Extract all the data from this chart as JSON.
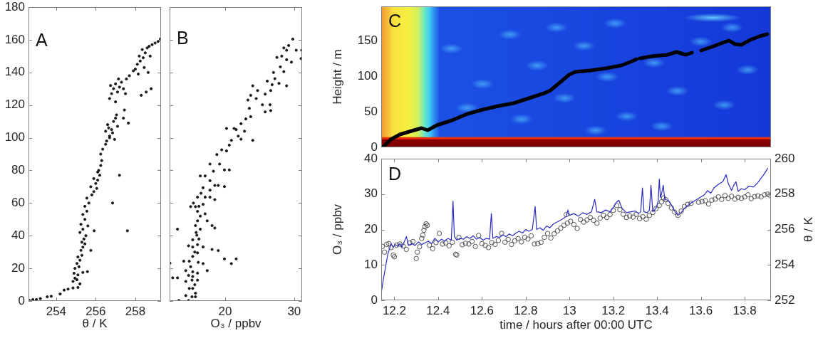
{
  "chart_data": [
    {
      "type": "scatter",
      "xlabel": "θ / K",
      "annotations": [
        "A"
      ],
      "marker": "circle",
      "color": "#1a1a1a",
      "xlim": [
        252.6,
        259.3
      ],
      "xticks": [
        254,
        256,
        258
      ],
      "ylim": [
        0,
        180
      ],
      "yticks": [
        0,
        20,
        40,
        60,
        80,
        100,
        120,
        140,
        160,
        180
      ],
      "x": [
        252.64,
        252.82,
        253.0,
        253.2,
        253.55,
        253.75,
        254.2,
        254.4,
        254.6,
        254.85,
        255.1,
        254.85,
        254.95,
        255.05,
        254.9,
        255.1,
        254.95,
        255.15,
        255.05,
        255.2,
        255.1,
        255.3,
        255.25,
        255.35,
        255.3,
        255.45,
        255.4,
        255.5,
        255.35,
        255.58,
        255.75,
        255.2,
        255.2,
        255.35,
        255.25,
        255.45,
        255.35,
        255.55,
        255.45,
        255.65,
        255.55,
        255.8,
        255.9,
        255.75,
        255.6,
        255.92,
        256.0,
        256.1,
        255.9,
        256.2,
        256.15,
        256.25,
        256.1,
        256.3,
        256.25,
        256.35,
        256.5,
        256.55,
        256.7,
        256.05,
        256.85,
        257.2,
        257.6,
        256.5,
        256.65,
        256.8,
        256.6,
        256.9,
        256.85,
        257.0,
        257.05,
        256.7,
        257.1,
        257.4,
        257.45,
        257.65,
        256.95,
        256.7,
        256.8,
        256.9,
        256.75,
        257.0,
        257.1,
        257.2,
        257.3,
        257.4,
        257.0,
        257.15,
        257.55,
        257.7,
        257.9,
        257.5,
        258.0,
        258.1,
        258.25,
        258.2,
        258.4,
        258.5,
        258.35,
        258.6,
        258.7,
        258.85,
        259.0,
        259.15,
        259.27,
        258.45,
        258.75,
        258.65,
        258.15,
        258.3,
        258.55,
        258.8
      ],
      "values": [
        0.4,
        0.9,
        0.9,
        1.5,
        2.6,
        2.9,
        4.3,
        6.7,
        7.3,
        8,
        8.3,
        12,
        14,
        13,
        17,
        16,
        20,
        21,
        23,
        25,
        27,
        28,
        31,
        33,
        36,
        35,
        38,
        40,
        17.5,
        18,
        31,
        10.5,
        42,
        44,
        47,
        50,
        53,
        55,
        58,
        60,
        63,
        65,
        67,
        70,
        46,
        43,
        72,
        74,
        75,
        77,
        80,
        83,
        79,
        86,
        90,
        93,
        96,
        98,
        100,
        69,
        60,
        77,
        43,
        104,
        106,
        105,
        108,
        110,
        103,
        112,
        114,
        101,
        107,
        112,
        117,
        109,
        99,
        124,
        127,
        130,
        132,
        133,
        128,
        131,
        134,
        130,
        122,
        136,
        136,
        138,
        141,
        127,
        142,
        145,
        147,
        150,
        149,
        152,
        154,
        155,
        156,
        157,
        158,
        159,
        160.5,
        143,
        150,
        140,
        139,
        126,
        128,
        130
      ]
    },
    {
      "type": "scatter",
      "xlabel": "O₃ / ppbv",
      "annotations": [
        "B"
      ],
      "tick_labels": "x",
      "marker": "circle",
      "color": "#1a1a1a",
      "xlim": [
        11.95,
        31.15
      ],
      "xticks": [
        20,
        30
      ],
      "ylim": [
        0,
        180
      ],
      "yticks": [
        0,
        20,
        40,
        60,
        80,
        100,
        120,
        140,
        160,
        180
      ],
      "x": [
        29.8,
        29.2,
        28.9,
        30.3,
        31.1,
        28.2,
        28.9,
        29.6,
        31.0,
        27.5,
        28.0,
        28.5,
        27.2,
        27.8,
        28.9,
        26.1,
        26.8,
        24.0,
        24.7,
        23.7,
        23.3,
        25.8,
        26.6,
        26.5,
        26.6,
        25.8,
        25.4,
        23.0,
        23.7,
        22.3,
        21.3,
        21.6,
        20.2,
        20.9,
        20.6,
        22.3,
        24.0,
        19.5,
        18.8,
        20.2,
        17.8,
        18.3,
        19.2,
        19.9,
        20.6,
        16.4,
        17.1,
        17.8,
        18.5,
        16.8,
        17.8,
        19.0,
        19.9,
        16.0,
        17.1,
        17.8,
        18.5,
        15.7,
        16.8,
        15.0,
        16.0,
        16.4,
        17.1,
        16.0,
        15.7,
        18.1,
        17.4,
        13.1,
        16.4,
        15.9,
        18.5,
        15.3,
        16.0,
        15.3,
        16.8,
        14.7,
        18.1,
        19.0,
        19.9,
        20.9,
        21.6,
        16.0,
        15.3,
        14.0,
        14.8,
        16.1,
        16.8,
        12.0,
        14.3,
        15.3,
        16.0,
        17.4,
        14.7,
        15.3,
        12.4,
        13.1,
        14.3,
        15.2,
        14.8,
        15.3,
        15.7,
        14.3,
        15.2,
        15.7,
        14.7,
        13.3,
        16.0,
        16.2,
        15.4,
        16.5,
        15.8,
        16.2,
        15.6,
        15.0,
        15.6,
        27.0,
        28.5,
        23.5,
        24.5,
        22.8,
        21.9
      ],
      "values": [
        160.4,
        156.5,
        153.6,
        153.6,
        153.6,
        150,
        147.8,
        146.3,
        148.5,
        149.2,
        143.4,
        140.5,
        136.2,
        133.3,
        131.8,
        134.7,
        132.5,
        131.8,
        128.9,
        126,
        123.1,
        126.7,
        128.9,
        120.2,
        116.6,
        115.8,
        120.2,
        111.5,
        112.9,
        108.6,
        105.7,
        105,
        105.7,
        98.4,
        95.5,
        99.1,
        98.4,
        92.6,
        89.7,
        91.9,
        83.9,
        79.5,
        83.9,
        80.3,
        80.3,
        76.6,
        76.6,
        73.7,
        70.8,
        69.4,
        67.9,
        70.8,
        70.1,
        63.6,
        63.6,
        63.6,
        62.1,
        57.8,
        59.2,
        57.8,
        54.9,
        52,
        53.4,
        49.1,
        46.2,
        46.2,
        49.1,
        44,
        44,
        40.3,
        44.7,
        37.5,
        34.5,
        33.1,
        33.1,
        33.8,
        31.6,
        30.9,
        25.8,
        22.9,
        25.8,
        29.5,
        27.3,
        24.4,
        24.4,
        23.7,
        22.9,
        23.2,
        18.6,
        17.9,
        17.1,
        18.6,
        15.7,
        15,
        14.2,
        14.2,
        12,
        12.8,
        7.7,
        7.7,
        4.8,
        3.3,
        2.6,
        2.6,
        0.3,
        0.3,
        12.8,
        58,
        60,
        66,
        42,
        38,
        30,
        21,
        10,
        140,
        155,
        118,
        124,
        104,
        101
      ]
    },
    {
      "type": "line",
      "ylabel": "Height / m",
      "annotations": [
        "C"
      ],
      "tick_labels": "y",
      "color": "#000000",
      "xlim": [
        12.14,
        13.92
      ],
      "ylim": [
        0,
        198
      ],
      "yticks": [
        0,
        50,
        100,
        150
      ],
      "x": [
        12.148,
        12.183,
        12.225,
        12.268,
        12.324,
        12.352,
        12.394,
        12.464,
        12.534,
        12.604,
        12.675,
        12.745,
        12.815,
        12.885,
        12.913,
        12.956,
        12.998,
        13.026,
        13.096,
        13.166,
        13.236,
        13.278,
        13.307,
        13.315,
        13.322,
        13.377,
        13.447,
        13.489,
        13.531,
        13.559,
        13.58,
        13.601,
        13.658,
        13.7,
        13.728,
        13.756,
        13.784,
        13.826,
        13.868,
        13.903
      ],
      "values": [
        0,
        11,
        18,
        22,
        27,
        24,
        31,
        38,
        47,
        53,
        58,
        62,
        69,
        76,
        80,
        91,
        102,
        106,
        108,
        111,
        115,
        120,
        124,
        null,
        125,
        128,
        130,
        134,
        130,
        133,
        null,
        136,
        142,
        147,
        150,
        145,
        144,
        151,
        156,
        159
      ]
    },
    {
      "type": "scatter",
      "xlabel": "time / hours after 00:00 UTC",
      "ylabel": "O₃ / ppbv",
      "y2label": "θ / K",
      "annotations": [
        "D"
      ],
      "xlim": [
        12.14,
        13.92
      ],
      "xticks": [
        12.2,
        12.4,
        12.6,
        12.8,
        13,
        13.2,
        13.4,
        13.6,
        13.8
      ],
      "ylim": [
        0,
        40
      ],
      "yticks": [
        0,
        10,
        20,
        30,
        40
      ],
      "y2lim": [
        252,
        260
      ],
      "y2ticks": [
        252,
        254,
        256,
        258,
        260
      ],
      "series": [
        {
          "marker": "circle",
          "color": "#404040",
          "x": [
            12.145,
            12.155,
            12.165,
            12.175,
            12.185,
            12.195,
            12.2,
            12.21,
            12.225,
            12.24,
            12.255,
            12.27,
            12.285,
            12.3,
            12.305,
            12.315,
            12.325,
            12.33,
            12.335,
            12.34,
            12.345,
            12.35,
            12.36,
            12.375,
            12.39,
            12.405,
            12.42,
            12.435,
            12.45,
            12.465,
            12.48,
            12.485,
            12.495,
            12.51,
            12.525,
            12.54,
            12.555,
            12.57,
            12.585,
            12.6,
            12.615,
            12.63,
            12.645,
            12.66,
            12.675,
            12.69,
            12.705,
            12.72,
            12.735,
            12.75,
            12.765,
            12.78,
            12.795,
            12.81,
            12.825,
            12.84,
            12.855,
            12.87,
            12.885,
            12.9,
            12.915,
            12.93,
            12.945,
            12.96,
            12.975,
            12.985,
            12.99,
            13.005,
            13.02,
            13.035,
            13.05,
            13.065,
            13.08,
            13.095,
            13.11,
            13.125,
            13.14,
            13.155,
            13.17,
            13.185,
            13.2,
            13.215,
            13.23,
            13.245,
            13.26,
            13.275,
            13.29,
            13.305,
            13.32,
            13.335,
            13.35,
            13.365,
            13.38,
            13.395,
            13.41,
            13.42,
            13.43,
            13.44,
            13.45,
            13.465,
            13.48,
            13.495,
            13.51,
            13.525,
            13.54,
            13.555,
            13.59,
            13.605,
            13.62,
            13.635,
            13.65,
            13.665,
            13.68,
            13.695,
            13.71,
            13.725,
            13.74,
            13.755,
            13.77,
            13.785,
            13.8,
            13.815,
            13.83,
            13.845,
            13.86,
            13.875,
            13.89,
            13.905,
            13.915
          ],
          "values": [
            15.2,
            13.6,
            15.8,
            16.0,
            14.9,
            12.8,
            12.3,
            15.6,
            15.9,
            15.3,
            14.4,
            16.2,
            16.6,
            11.8,
            13.6,
            15.1,
            17.5,
            18.4,
            19.8,
            20.8,
            21.6,
            21.2,
            15.6,
            14.6,
            16.3,
            18.9,
            15.9,
            16.2,
            15.4,
            16.4,
            13.0,
            12.8,
            17.8,
            15.7,
            16.1,
            15.9,
            16.6,
            15.2,
            18.3,
            16.0,
            15.5,
            14.9,
            16.3,
            15.8,
            16.9,
            18.9,
            16.4,
            17.2,
            15.8,
            16.8,
            17.4,
            16.5,
            17.8,
            17.3,
            18.2,
            15.9,
            16.0,
            16.4,
            17.8,
            18.9,
            17.6,
            18.8,
            19.6,
            20.4,
            21.2,
            24.2,
            21.8,
            22.3,
            21.4,
            20.3,
            22.8,
            22.1,
            22.7,
            23.4,
            22.6,
            21.8,
            23.2,
            24.0,
            23.4,
            24.2,
            25.4,
            26.8,
            25.6,
            24.3,
            23.4,
            23.8,
            23.5,
            24.3,
            23.1,
            23.6,
            22.9,
            24.0,
            24.8,
            25.9,
            26.8,
            27.8,
            28.9,
            28.4,
            27.4,
            26.1,
            24.9,
            24.0,
            25.2,
            26.5,
            27.1,
            27.4,
            27.7,
            27.9,
            28.1,
            27.2,
            28.3,
            28.6,
            29.2,
            28.5,
            29.6,
            28.8,
            29.4,
            28.6,
            29.1,
            28.8,
            29.2,
            29.8,
            28.7,
            29.3,
            29.5,
            29.2,
            29.8,
            30.0,
            29.7
          ]
        },
        {
          "type": "line",
          "axis": "y2",
          "color": "#2b2bc4",
          "x": [
            12.14,
            12.15,
            12.16,
            12.17,
            12.18,
            12.185,
            12.195,
            12.205,
            12.215,
            12.225,
            12.235,
            12.245,
            12.255,
            12.265,
            12.28,
            12.295,
            12.31,
            12.325,
            12.34,
            12.355,
            12.37,
            12.385,
            12.4,
            12.415,
            12.43,
            12.445,
            12.46,
            12.468,
            12.474,
            12.485,
            12.5,
            12.515,
            12.53,
            12.545,
            12.56,
            12.575,
            12.59,
            12.605,
            12.62,
            12.635,
            12.643,
            12.65,
            12.665,
            12.68,
            12.695,
            12.71,
            12.725,
            12.74,
            12.755,
            12.77,
            12.785,
            12.8,
            12.815,
            12.83,
            12.843,
            12.85,
            12.865,
            12.88,
            12.895,
            12.91,
            12.925,
            12.94,
            12.955,
            12.97,
            12.985,
            12.993,
            13.0,
            13.02,
            13.04,
            13.06,
            13.08,
            13.1,
            13.115,
            13.125,
            13.145,
            13.165,
            13.185,
            13.2,
            13.215,
            13.225,
            13.24,
            13.26,
            13.28,
            13.3,
            13.315,
            13.325,
            13.333,
            13.34,
            13.355,
            13.365,
            13.372,
            13.38,
            13.395,
            13.405,
            13.41,
            13.415,
            13.42,
            13.428,
            13.435,
            13.45,
            13.465,
            13.48,
            13.495,
            13.51,
            13.525,
            13.54,
            13.555,
            13.575,
            13.595,
            13.615,
            13.63,
            13.645,
            13.66,
            13.68,
            13.7,
            13.715,
            13.725,
            13.74,
            13.75,
            13.76,
            13.77,
            13.785,
            13.8,
            13.82,
            13.84,
            13.86,
            13.875,
            13.89,
            13.905
          ],
          "values": [
            252.4,
            253.2,
            253.9,
            254.6,
            255.0,
            255.2,
            255.0,
            255.15,
            255.05,
            255.2,
            255.0,
            255.3,
            255.6,
            255.1,
            255.2,
            255.1,
            255.3,
            255.15,
            255.25,
            255.35,
            255.2,
            255.5,
            255.3,
            255.45,
            255.35,
            255.5,
            255.4,
            257.6,
            255.6,
            255.4,
            255.5,
            255.45,
            255.6,
            255.5,
            255.65,
            255.45,
            255.55,
            255.4,
            255.5,
            255.45,
            256.9,
            255.5,
            255.6,
            255.55,
            255.7,
            255.6,
            255.75,
            255.65,
            255.8,
            255.9,
            255.8,
            256.0,
            255.9,
            256.0,
            257.3,
            256.0,
            256.1,
            255.95,
            256.2,
            256.1,
            256.3,
            256.4,
            256.5,
            256.6,
            256.75,
            257.1,
            256.8,
            256.9,
            256.75,
            256.95,
            256.85,
            257.0,
            257.7,
            257.0,
            256.95,
            257.1,
            257.0,
            257.25,
            257.55,
            257.65,
            257.2,
            256.95,
            257.0,
            257.05,
            256.9,
            257.0,
            258.35,
            257.0,
            256.95,
            257.1,
            258.5,
            257.0,
            257.2,
            257.6,
            258.85,
            257.8,
            258.0,
            258.5,
            257.7,
            257.65,
            257.4,
            257.05,
            256.8,
            256.95,
            257.2,
            257.35,
            257.5,
            257.65,
            257.8,
            257.95,
            258.2,
            258.05,
            258.35,
            258.55,
            258.7,
            259.1,
            258.6,
            258.2,
            258.5,
            258.7,
            258.15,
            258.3,
            258.25,
            258.45,
            258.4,
            258.65,
            258.9,
            259.15,
            259.45
          ]
        }
      ]
    }
  ]
}
